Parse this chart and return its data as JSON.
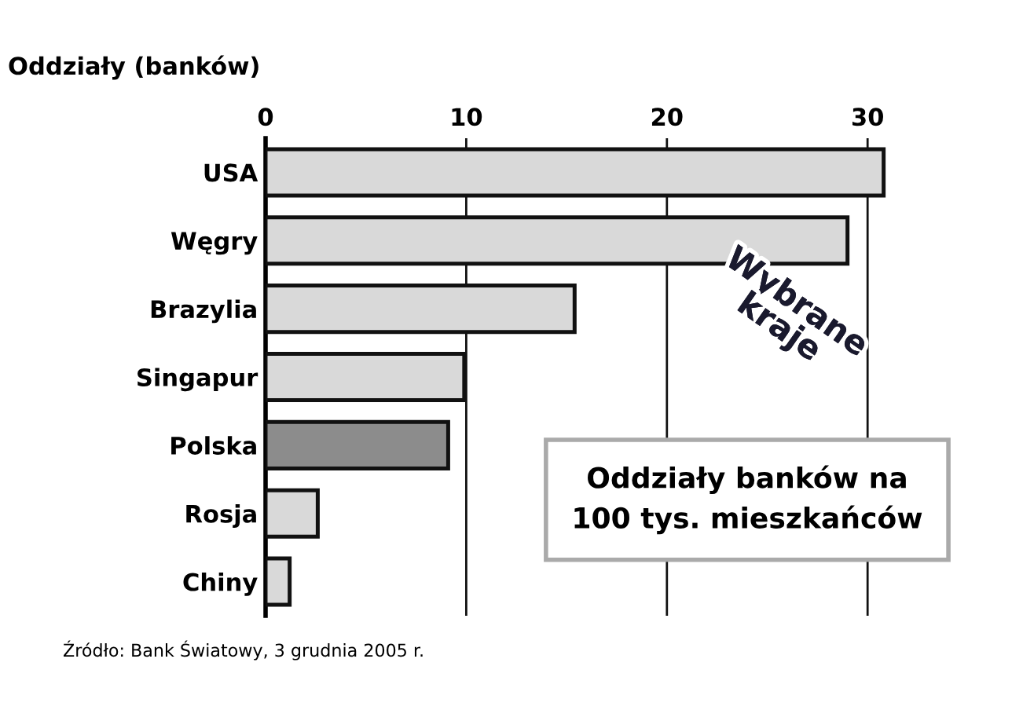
{
  "chart_data": {
    "type": "bar",
    "orientation": "horizontal",
    "title": "Oddziały (banków)",
    "categories": [
      "USA",
      "Węgry",
      "Brazylia",
      "Singapur",
      "Polska",
      "Rosja",
      "Chiny"
    ],
    "values": [
      30.8,
      29.0,
      15.4,
      9.9,
      9.1,
      2.6,
      1.2
    ],
    "colors": [
      "#d9d9d9",
      "#d9d9d9",
      "#d9d9d9",
      "#d9d9d9",
      "#8c8c8c",
      "#d9d9d9",
      "#d9d9d9"
    ],
    "xlim": [
      0,
      34
    ],
    "xticks": [
      0,
      10,
      20,
      30
    ],
    "grid": "x",
    "legend": false,
    "annotations": [
      {
        "text": "Wybrane\nkraje"
      },
      {
        "text": "Oddziały banków na\n100 tys. mieszkańców"
      },
      {
        "text": "Źródło: Bank Światowy, 3 grudnia 2005 r."
      }
    ]
  }
}
